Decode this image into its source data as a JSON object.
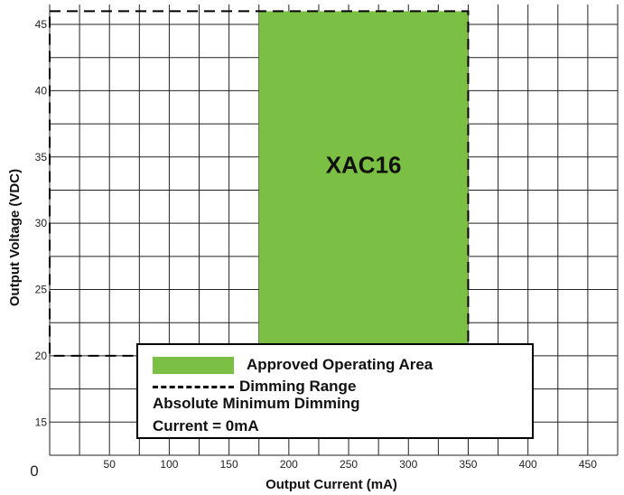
{
  "chart_data": {
    "type": "area",
    "xlabel": "Output Current (mA)",
    "ylabel": "Output Voltage (VDC)",
    "xlim": [
      0,
      475
    ],
    "ylim": [
      12.5,
      46.5
    ],
    "x_ticks": [
      50,
      100,
      150,
      200,
      250,
      300,
      350,
      400,
      450
    ],
    "y_ticks": [
      15,
      20,
      25,
      30,
      35,
      40,
      45
    ],
    "x_origin_label": "0",
    "approved_area": {
      "x": [
        175,
        350
      ],
      "y": [
        20,
        46
      ],
      "color": "#7bbf44",
      "label": "XAC16"
    },
    "dimming_range": {
      "x": [
        0,
        350
      ],
      "y": [
        20,
        46
      ],
      "style": "dashed"
    },
    "legend": {
      "approved": "Approved Operating Area",
      "dimming": "Dimming Range",
      "note_line1": "Absolute Minimum Dimming",
      "note_line2": "Current = 0mA"
    }
  }
}
